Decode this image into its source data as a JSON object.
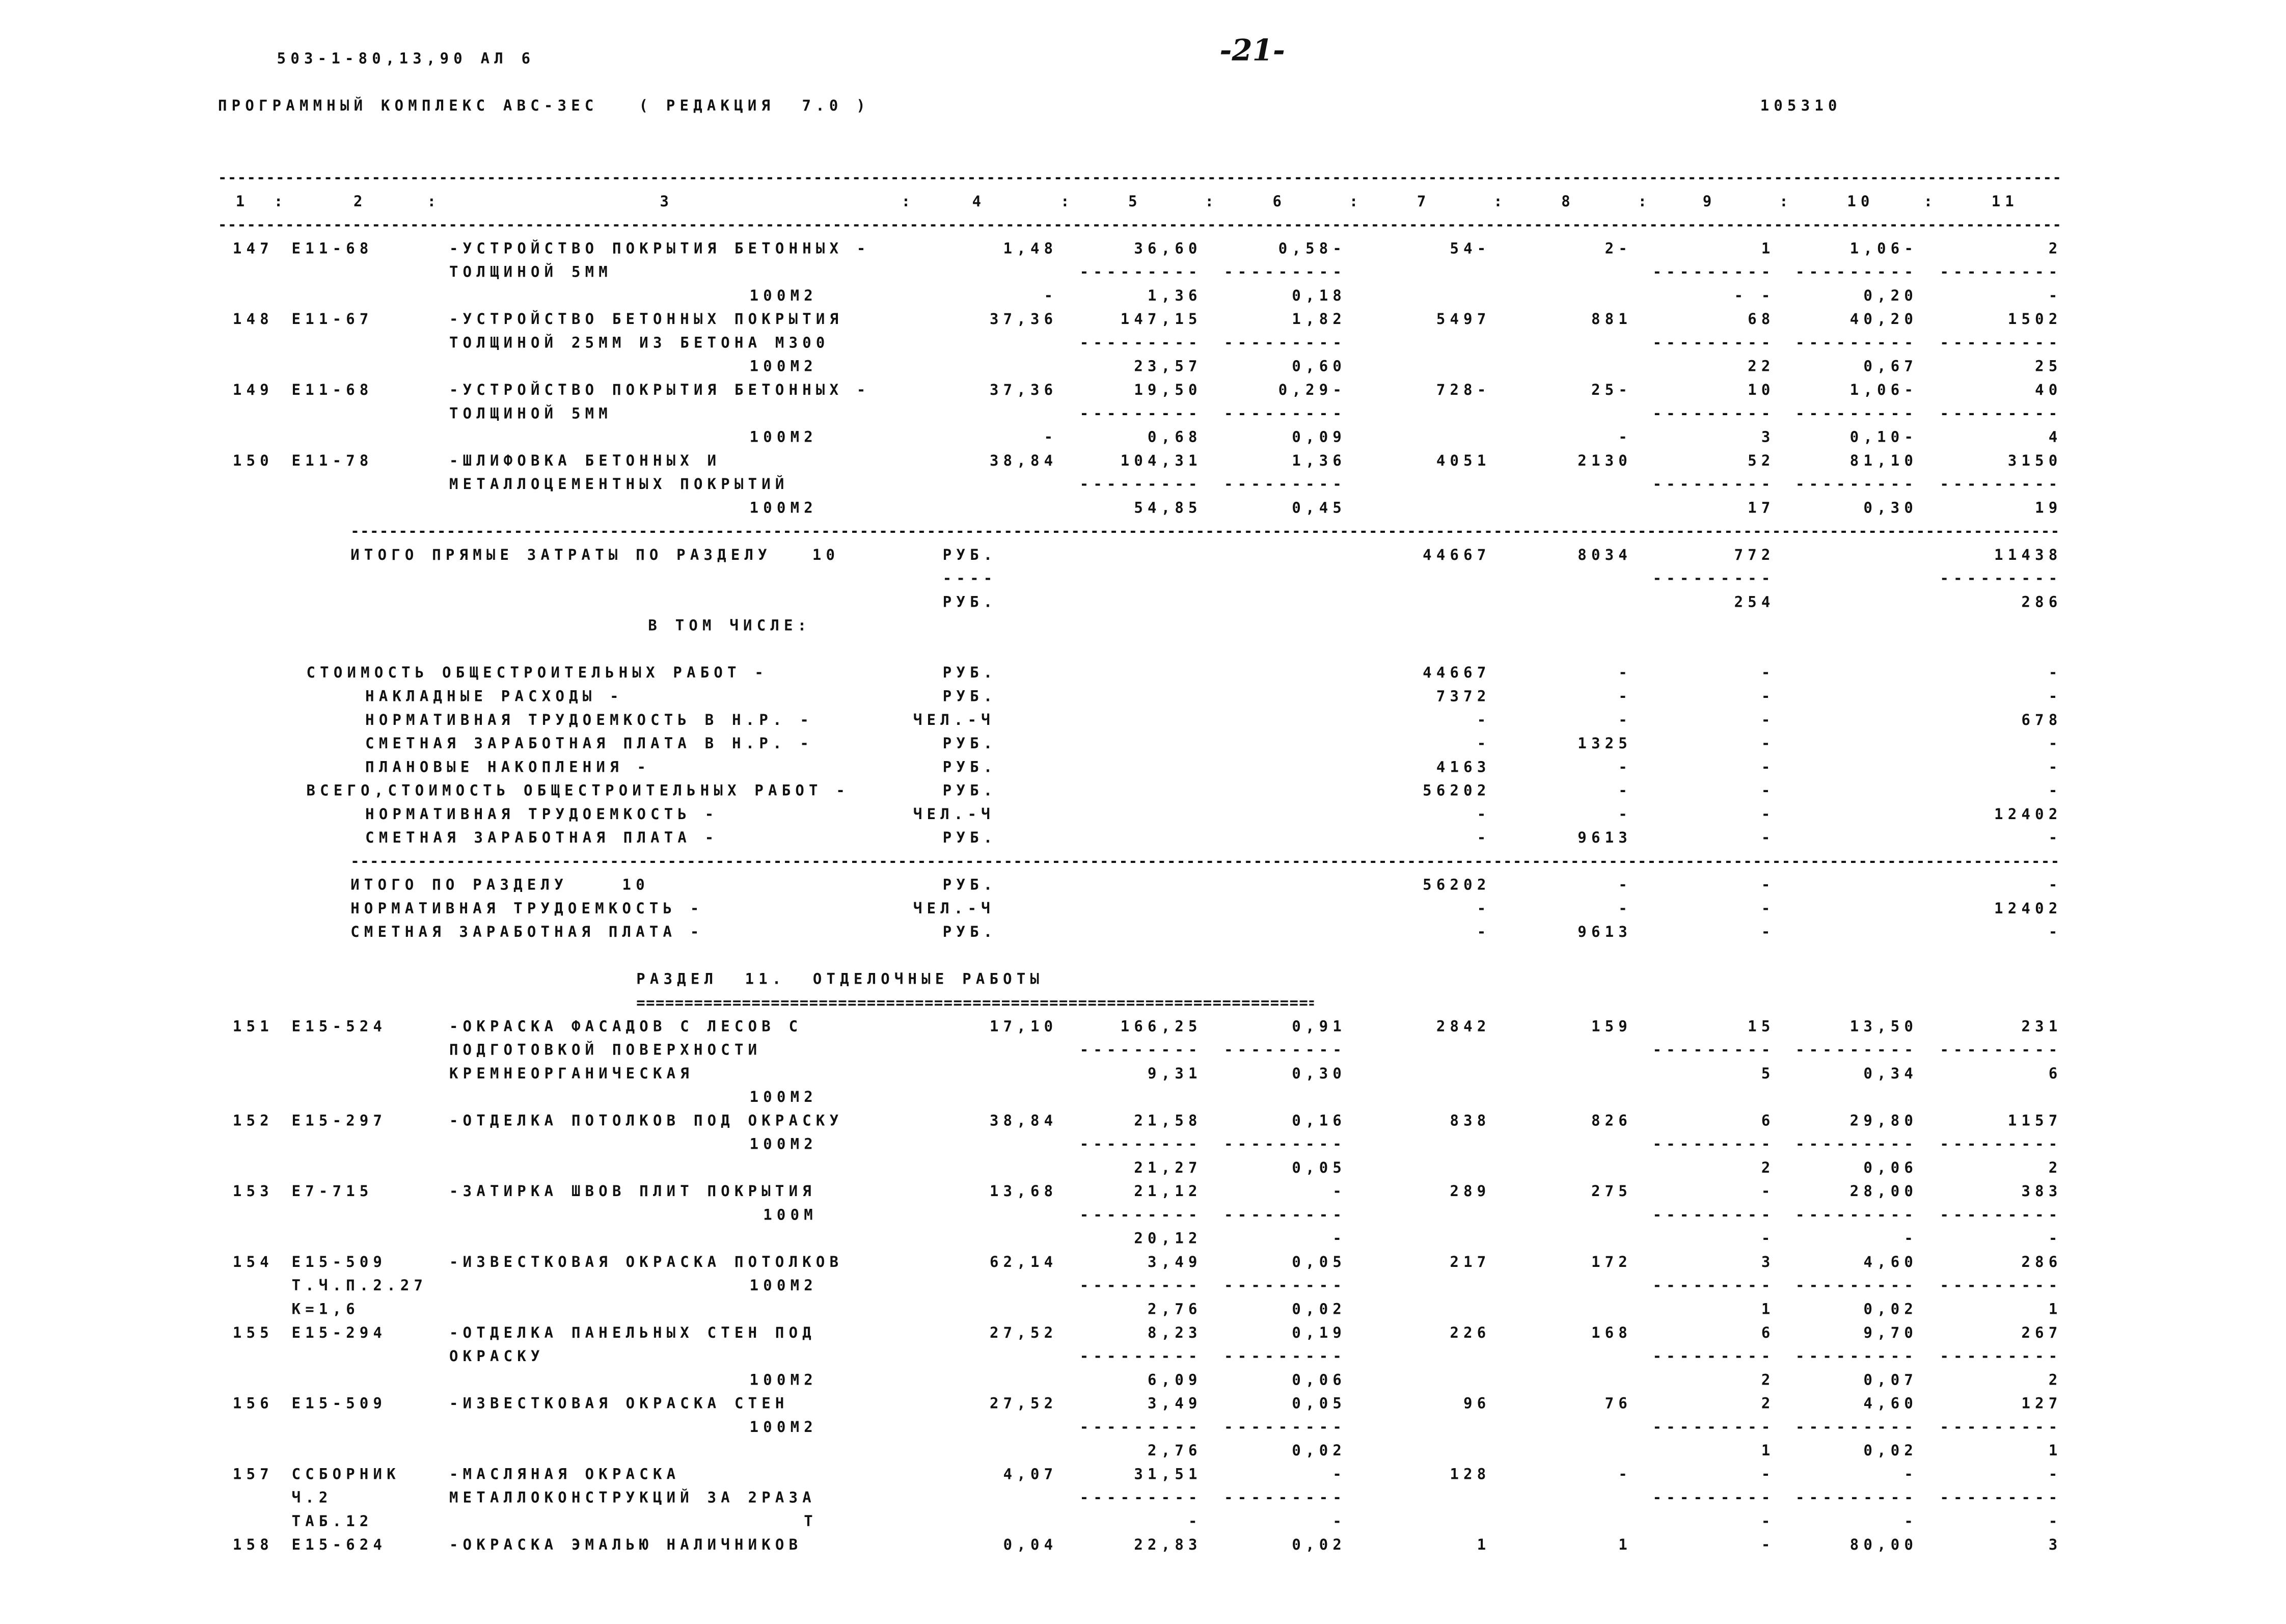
{
  "header": {
    "doc_code": "503-1-80,13,90 АЛ 6",
    "page_mark": "-21-",
    "program": "ПРОГРАММНЫЙ КОМПЛЕКС АВС-3ЕС   ( РЕДАКЦИЯ  7.0 )",
    "number": "105310"
  },
  "columns": [
    "1",
    "2",
    "3",
    "4",
    "5",
    "6",
    "7",
    "8",
    "9",
    "10",
    "11"
  ],
  "lines": [
    {
      "no": "147",
      "code": "E11-68",
      "desc": "-УСТРОЙСТВО ПОКРЫТИЯ БЕТОННЫХ -",
      "v": [
        "1,48",
        "36,60",
        "0,58-",
        "54-",
        "2-",
        "1",
        "1,06-",
        "2"
      ]
    },
    {
      "desc": "ТОЛЩИНОЙ 5ММ",
      "v": [
        "",
        "---------",
        "---------",
        "",
        "",
        "---------",
        "---------",
        "---------"
      ]
    },
    {
      "unit": "100М2",
      "v": [
        "-",
        "1,36",
        "0,18",
        "",
        "",
        "- -",
        "0,20",
        "-"
      ]
    },
    {
      "no": "148",
      "code": "E11-67",
      "desc": "-УСТРОЙСТВО БЕТОННЫХ ПОКРЫТИЯ",
      "v": [
        "37,36",
        "147,15",
        "1,82",
        "5497",
        "881",
        "68",
        "40,20",
        "1502"
      ]
    },
    {
      "desc": "ТОЛЩИНОЙ 25ММ ИЗ БЕТОНА М300",
      "v": [
        "",
        "---------",
        "---------",
        "",
        "",
        "---------",
        "---------",
        "---------"
      ]
    },
    {
      "unit": "100М2",
      "v": [
        "",
        "23,57",
        "0,60",
        "",
        "",
        "22",
        "0,67",
        "25"
      ]
    },
    {
      "no": "149",
      "code": "E11-68",
      "desc": "-УСТРОЙСТВО ПОКРЫТИЯ БЕТОННЫХ -",
      "v": [
        "37,36",
        "19,50",
        "0,29-",
        "728-",
        "25-",
        "10",
        "1,06-",
        "40"
      ]
    },
    {
      "desc": "ТОЛЩИНОЙ 5ММ",
      "v": [
        "",
        "---------",
        "---------",
        "",
        "",
        "---------",
        "---------",
        "---------"
      ]
    },
    {
      "unit": "100М2",
      "v": [
        "-",
        "0,68",
        "0,09",
        "",
        "-",
        "3",
        "0,10-",
        "4"
      ]
    },
    {
      "no": "150",
      "code": "E11-78",
      "desc": "-ШЛИФОВКА БЕТОННЫХ И",
      "v": [
        "38,84",
        "104,31",
        "1,36",
        "4051",
        "2130",
        "52",
        "81,10",
        "3150"
      ]
    },
    {
      "desc": "МЕТАЛЛОЦЕМЕНТНЫХ ПОКРЫТИЙ",
      "v": [
        "",
        "---------",
        "---------",
        "",
        "",
        "---------",
        "---------",
        "---------"
      ]
    },
    {
      "unit": "100М2",
      "v": [
        "",
        "54,85",
        "0,45",
        "",
        "",
        "17",
        "0,30",
        "19"
      ]
    },
    {
      "rule": "dash"
    },
    {
      "kind": "total",
      "label": "ИТОГО ПРЯМЫЕ ЗАТРАТЫ ПО РАЗДЕЛУ   10",
      "cur": "РУБ.",
      "v": [
        "",
        "",
        "",
        "44667",
        "8034",
        "772",
        "",
        "11438"
      ]
    },
    {
      "cur": "----",
      "v": [
        "",
        "",
        "",
        "",
        "",
        "---------",
        "",
        "---------"
      ]
    },
    {
      "cur": "РУБ.",
      "v": [
        "",
        "",
        "",
        "",
        "",
        "254",
        "",
        "286"
      ]
    },
    {
      "kind": "heading",
      "label": "В ТОМ ЧИСЛЕ:"
    },
    {},
    {
      "kind": "main",
      "label": "СТОИМОСТЬ ОБЩЕСТРОИТЕЛЬНЫХ РАБОТ -",
      "cur": "РУБ.",
      "v": [
        "",
        "",
        "",
        "44667",
        "-",
        "-",
        "",
        "-"
      ]
    },
    {
      "kind": "sub",
      "label": "НАКЛАДНЫЕ РАСХОДЫ -",
      "cur": "РУБ.",
      "v": [
        "",
        "",
        "",
        "7372",
        "-",
        "-",
        "",
        "-"
      ]
    },
    {
      "kind": "sub",
      "label": "НОРМАТИВНАЯ ТРУДОЕМКОСТЬ В Н.Р. -",
      "cur": "ЧЕЛ.-Ч",
      "v": [
        "",
        "",
        "",
        "-",
        "-",
        "-",
        "",
        "678"
      ]
    },
    {
      "kind": "sub",
      "label": "СМЕТНАЯ ЗАРАБОТНАЯ ПЛАТА В Н.Р. -",
      "cur": "РУБ.",
      "v": [
        "",
        "",
        "",
        "-",
        "1325",
        "-",
        "",
        "-"
      ]
    },
    {
      "kind": "sub",
      "label": "ПЛАНОВЫЕ НАКОПЛЕНИЯ -",
      "cur": "РУБ.",
      "v": [
        "",
        "",
        "",
        "4163",
        "-",
        "-",
        "",
        "-"
      ]
    },
    {
      "kind": "main",
      "label": "ВСЕГО,СТОИМОСТЬ ОБЩЕСТРОИТЕЛЬНЫХ РАБОТ -",
      "cur": "РУБ.",
      "v": [
        "",
        "",
        "",
        "56202",
        "-",
        "-",
        "",
        "-"
      ]
    },
    {
      "kind": "sub",
      "label": "НОРМАТИВНАЯ ТРУДОЕМКОСТЬ -",
      "cur": "ЧЕЛ.-Ч",
      "v": [
        "",
        "",
        "",
        "-",
        "-",
        "-",
        "",
        "12402"
      ]
    },
    {
      "kind": "sub",
      "label": "СМЕТНАЯ ЗАРАБОТНАЯ ПЛАТА -",
      "cur": "РУБ.",
      "v": [
        "",
        "",
        "",
        "-",
        "9613",
        "-",
        "",
        "-"
      ]
    },
    {
      "rule": "dash"
    },
    {
      "kind": "total",
      "label": "ИТОГО ПО РАЗДЕЛУ    10",
      "cur": "РУБ.",
      "v": [
        "",
        "",
        "",
        "56202",
        "-",
        "-",
        "",
        "-"
      ]
    },
    {
      "kind": "total",
      "label": "НОРМАТИВНАЯ ТРУДОЕМКОСТЬ -",
      "cur": "ЧЕЛ.-Ч",
      "v": [
        "",
        "",
        "",
        "-",
        "-",
        "-",
        "",
        "12402"
      ]
    },
    {
      "kind": "total",
      "label": "СМЕТНАЯ ЗАРАБОТНАЯ ПЛАТА -",
      "cur": "РУБ.",
      "v": [
        "",
        "",
        "",
        "-",
        "9613",
        "-",
        "",
        "-"
      ]
    },
    {},
    {
      "kind": "section",
      "label": "РАЗДЕЛ  11.  ОТДЕЛОЧНЫЕ РАБОТЫ"
    },
    {
      "rule": "equals"
    },
    {
      "no": "151",
      "code": "E15-524",
      "desc": "-ОКРАСКА ФАСАДОВ С ЛЕСОВ С",
      "v": [
        "17,10",
        "166,25",
        "0,91",
        "2842",
        "159",
        "15",
        "13,50",
        "231"
      ]
    },
    {
      "desc": "ПОДГОТОВКОЙ ПОВЕРХНОСТИ",
      "v": [
        "",
        "---------",
        "---------",
        "",
        "",
        "---------",
        "---------",
        "---------"
      ]
    },
    {
      "desc": "КРЕМНЕОРГАНИЧЕСКАЯ",
      "v": [
        "",
        "9,31",
        "0,30",
        "",
        "",
        "5",
        "0,34",
        "6"
      ]
    },
    {
      "unit": "100М2"
    },
    {
      "no": "152",
      "code": "E15-297",
      "desc": "-ОТДЕЛКА ПОТОЛКОВ ПОД ОКРАСКУ",
      "v": [
        "38,84",
        "21,58",
        "0,16",
        "838",
        "826",
        "6",
        "29,80",
        "1157"
      ]
    },
    {
      "unit": "100М2",
      "v": [
        "",
        "---------",
        "---------",
        "",
        "",
        "---------",
        "---------",
        "---------"
      ]
    },
    {
      "v": [
        "",
        "21,27",
        "0,05",
        "",
        "",
        "2",
        "0,06",
        "2"
      ]
    },
    {
      "no": "153",
      "code": "E7-715",
      "desc": "-ЗАТИРКА ШВОВ ПЛИТ ПОКРЫТИЯ",
      "v": [
        "13,68",
        "21,12",
        "-",
        "289",
        "275",
        "-",
        "28,00",
        "383"
      ]
    },
    {
      "unit": "100М",
      "v": [
        "",
        "---------",
        "---------",
        "",
        "",
        "---------",
        "---------",
        "---------"
      ]
    },
    {
      "v": [
        "",
        "20,12",
        "-",
        "",
        "",
        "-",
        "-",
        "-"
      ]
    },
    {
      "no": "154",
      "code": "E15-509",
      "desc": "-ИЗВЕСТКОВАЯ ОКРАСКА ПОТОЛКОВ",
      "v": [
        "62,14",
        "3,49",
        "0,05",
        "217",
        "172",
        "3",
        "4,60",
        "286"
      ]
    },
    {
      "code": "Т.Ч.П.2.27",
      "unit": "100М2",
      "v": [
        "",
        "---------",
        "---------",
        "",
        "",
        "---------",
        "---------",
        "---------"
      ]
    },
    {
      "code": "К=1,6",
      "v": [
        "",
        "2,76",
        "0,02",
        "",
        "",
        "1",
        "0,02",
        "1"
      ]
    },
    {
      "no": "155",
      "code": "E15-294",
      "desc": "-ОТДЕЛКА ПАНЕЛЬНЫХ СТЕН ПОД",
      "v": [
        "27,52",
        "8,23",
        "0,19",
        "226",
        "168",
        "6",
        "9,70",
        "267"
      ]
    },
    {
      "desc": "ОКРАСКУ",
      "v": [
        "",
        "---------",
        "---------",
        "",
        "",
        "---------",
        "---------",
        "---------"
      ]
    },
    {
      "unit": "100М2",
      "v": [
        "",
        "6,09",
        "0,06",
        "",
        "",
        "2",
        "0,07",
        "2"
      ]
    },
    {
      "no": "156",
      "code": "E15-509",
      "desc": "-ИЗВЕСТКОВАЯ ОКРАСКА СТЕН",
      "v": [
        "27,52",
        "3,49",
        "0,05",
        "96",
        "76",
        "2",
        "4,60",
        "127"
      ]
    },
    {
      "unit": "100М2",
      "v": [
        "",
        "---------",
        "---------",
        "",
        "",
        "---------",
        "---------",
        "---------"
      ]
    },
    {
      "v": [
        "",
        "2,76",
        "0,02",
        "",
        "",
        "1",
        "0,02",
        "1"
      ]
    },
    {
      "no": "157",
      "code": "ССБОРНИК",
      "desc": "-МАСЛЯНАЯ ОКРАСКА",
      "v": [
        "4,07",
        "31,51",
        "-",
        "128",
        "-",
        "-",
        "-",
        "-"
      ]
    },
    {
      "code": "Ч.2",
      "desc": "МЕТАЛЛОКОНСТРУКЦИЙ ЗА 2РАЗА",
      "v": [
        "",
        "---------",
        "---------",
        "",
        "",
        "---------",
        "---------",
        "---------"
      ]
    },
    {
      "code": "ТАБ.12",
      "unit": "Т",
      "v": [
        "",
        "-",
        "-",
        "",
        "",
        "-",
        "-",
        "-"
      ]
    },
    {
      "no": "158",
      "code": "E15-624",
      "desc": "-ОКРАСКА ЭМАЛЬЮ НАЛИЧНИКОВ",
      "v": [
        "0,04",
        "22,83",
        "0,02",
        "1",
        "1",
        "-",
        "80,00",
        "3"
      ]
    }
  ]
}
